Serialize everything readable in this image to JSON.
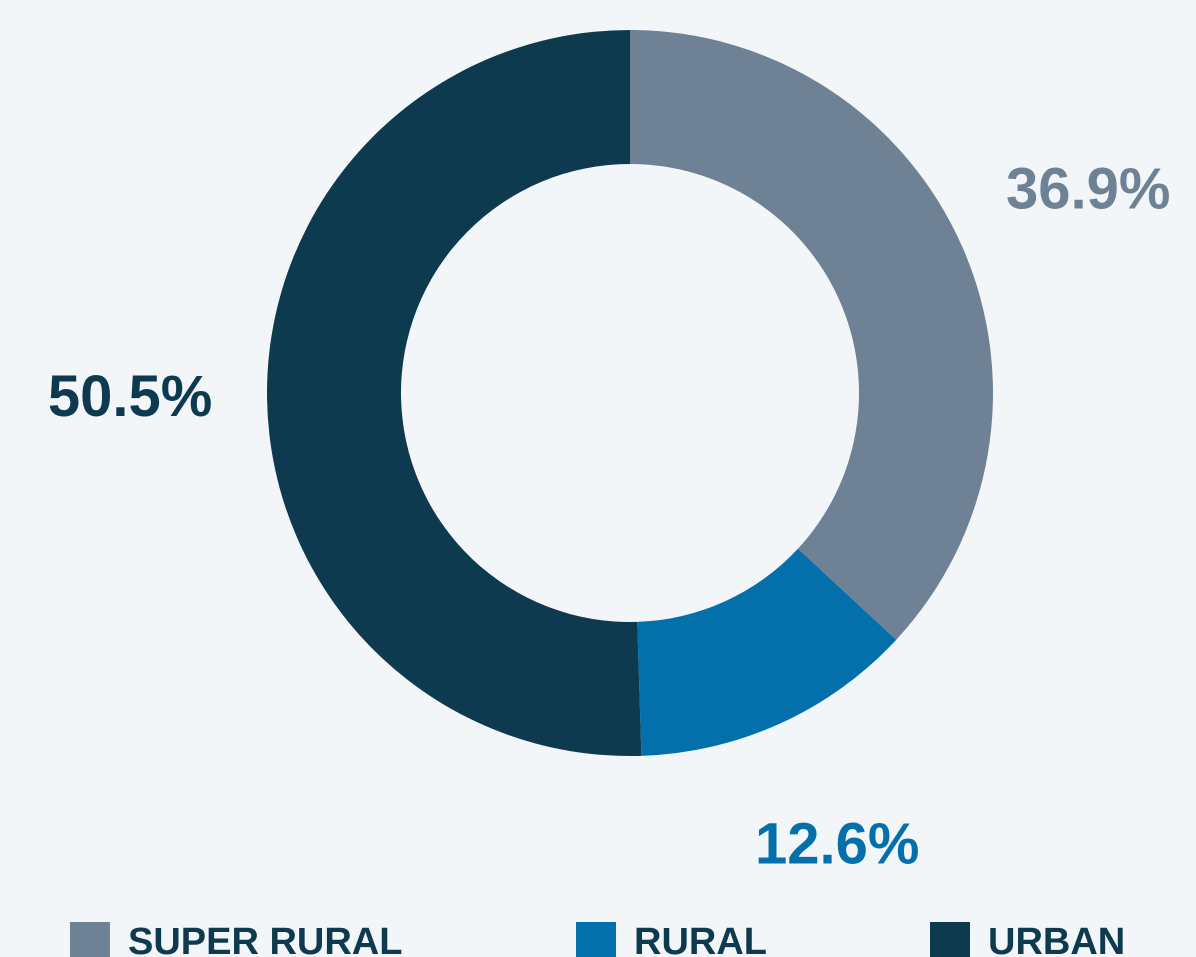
{
  "chart_data": {
    "type": "pie",
    "categories": [
      "SUPER RURAL",
      "RURAL",
      "URBAN"
    ],
    "values": [
      36.9,
      12.6,
      50.5
    ],
    "value_labels": [
      "36.9%",
      "12.6%",
      "50.5%"
    ],
    "colors": [
      "#6e8195",
      "#0470ab",
      "#0e3a4f"
    ],
    "donut": true
  }
}
